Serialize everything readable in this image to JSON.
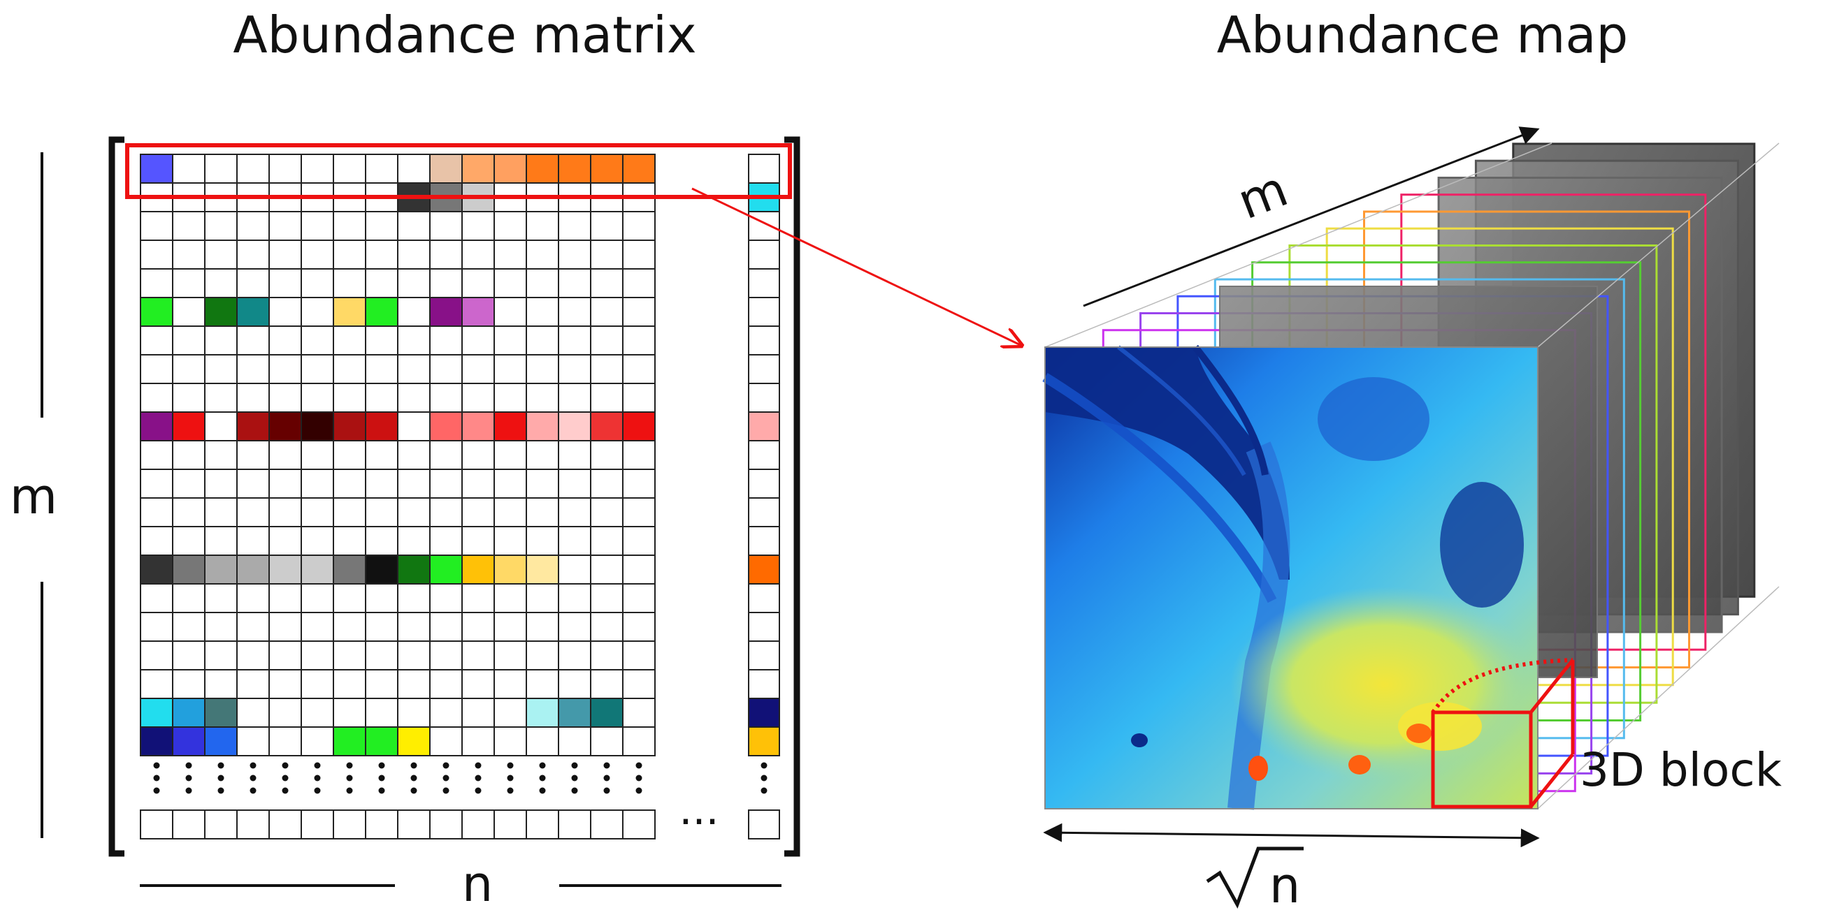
{
  "titles": {
    "matrix": "Abundance matrix",
    "map": "Abundance map"
  },
  "labels": {
    "m_left": "m",
    "n_bottom": "n",
    "m_depth": "m",
    "sqrt_n": "n",
    "block": "3D block",
    "ellipsis_h": "···"
  },
  "matrix": {
    "rows": 21,
    "cols": 16,
    "colored_cells": [
      {
        "r": 0,
        "c": 0,
        "color": "#5555ff"
      },
      {
        "r": 0,
        "c": 9,
        "color": "#e8c3a8"
      },
      {
        "r": 0,
        "c": 10,
        "color": "#ffa868"
      },
      {
        "r": 0,
        "c": 11,
        "color": "#ffa060"
      },
      {
        "r": 0,
        "c": 12,
        "color": "#ff7a18"
      },
      {
        "r": 0,
        "c": 13,
        "color": "#ff7a18"
      },
      {
        "r": 0,
        "c": 14,
        "color": "#ff7a18"
      },
      {
        "r": 0,
        "c": 15,
        "color": "#ff7a18"
      },
      {
        "r": 1,
        "c": 8,
        "color": "#333333"
      },
      {
        "r": 1,
        "c": 9,
        "color": "#777777"
      },
      {
        "r": 1,
        "c": 10,
        "color": "#cccccc"
      },
      {
        "r": 5,
        "c": 0,
        "color": "#22ee22"
      },
      {
        "r": 5,
        "c": 2,
        "color": "#117711"
      },
      {
        "r": 5,
        "c": 3,
        "color": "#118888"
      },
      {
        "r": 5,
        "c": 6,
        "color": "#ffd966"
      },
      {
        "r": 5,
        "c": 7,
        "color": "#22ee22"
      },
      {
        "r": 5,
        "c": 9,
        "color": "#881188"
      },
      {
        "r": 5,
        "c": 10,
        "color": "#cc66cc"
      },
      {
        "r": 9,
        "c": 0,
        "color": "#881188"
      },
      {
        "r": 9,
        "c": 1,
        "color": "#ee1111"
      },
      {
        "r": 9,
        "c": 3,
        "color": "#aa1111"
      },
      {
        "r": 9,
        "c": 4,
        "color": "#660000"
      },
      {
        "r": 9,
        "c": 5,
        "color": "#330000"
      },
      {
        "r": 9,
        "c": 6,
        "color": "#aa1111"
      },
      {
        "r": 9,
        "c": 7,
        "color": "#cc1111"
      },
      {
        "r": 9,
        "c": 9,
        "color": "#ff6666"
      },
      {
        "r": 9,
        "c": 10,
        "color": "#ff8888"
      },
      {
        "r": 9,
        "c": 11,
        "color": "#ee1111"
      },
      {
        "r": 9,
        "c": 12,
        "color": "#ffaaaa"
      },
      {
        "r": 9,
        "c": 13,
        "color": "#ffcccc"
      },
      {
        "r": 9,
        "c": 14,
        "color": "#ee3333"
      },
      {
        "r": 9,
        "c": 15,
        "color": "#ee1111"
      },
      {
        "r": 14,
        "c": 0,
        "color": "#333333"
      },
      {
        "r": 14,
        "c": 1,
        "color": "#777777"
      },
      {
        "r": 14,
        "c": 2,
        "color": "#aaaaaa"
      },
      {
        "r": 14,
        "c": 3,
        "color": "#aaaaaa"
      },
      {
        "r": 14,
        "c": 4,
        "color": "#cccccc"
      },
      {
        "r": 14,
        "c": 5,
        "color": "#cccccc"
      },
      {
        "r": 14,
        "c": 6,
        "color": "#777777"
      },
      {
        "r": 14,
        "c": 7,
        "color": "#111111"
      },
      {
        "r": 14,
        "c": 8,
        "color": "#117711"
      },
      {
        "r": 14,
        "c": 9,
        "color": "#22ee22"
      },
      {
        "r": 14,
        "c": 10,
        "color": "#ffc107"
      },
      {
        "r": 14,
        "c": 11,
        "color": "#ffd966"
      },
      {
        "r": 14,
        "c": 12,
        "color": "#ffe8a0"
      },
      {
        "r": 19,
        "c": 0,
        "color": "#22ddee"
      },
      {
        "r": 19,
        "c": 1,
        "color": "#22a0dd"
      },
      {
        "r": 19,
        "c": 2,
        "color": "#447777"
      },
      {
        "r": 19,
        "c": 12,
        "color": "#aaf2f2"
      },
      {
        "r": 19,
        "c": 13,
        "color": "#4499aa"
      },
      {
        "r": 19,
        "c": 14,
        "color": "#117777"
      },
      {
        "r": 20,
        "c": 0,
        "color": "#111177"
      },
      {
        "r": 20,
        "c": 1,
        "color": "#3333dd"
      },
      {
        "r": 20,
        "c": 2,
        "color": "#2266ee"
      },
      {
        "r": 20,
        "c": 6,
        "color": "#22ee22"
      },
      {
        "r": 20,
        "c": 7,
        "color": "#22ee22"
      },
      {
        "r": 20,
        "c": 8,
        "color": "#ffee00"
      }
    ],
    "last_column": {
      "rows": 21,
      "colored_cells": [
        {
          "r": 1,
          "color": "#22ddee"
        },
        {
          "r": 9,
          "color": "#ffaaaa"
        },
        {
          "r": 14,
          "color": "#ff6a00"
        },
        {
          "r": 19,
          "color": "#111177"
        },
        {
          "r": 20,
          "color": "#ffc107"
        }
      ]
    }
  },
  "cube_layers": [
    {
      "name": "gray-layer",
      "color": "#333333"
    },
    {
      "name": "gray-layer",
      "color": "#555555"
    },
    {
      "name": "gray-layer",
      "color": "#666666"
    },
    {
      "name": "pink-layer",
      "color": "#ee2266"
    },
    {
      "name": "orange-layer",
      "color": "#ff9933"
    },
    {
      "name": "yellow-layer",
      "color": "#eedd44"
    },
    {
      "name": "lime-layer",
      "color": "#aadd33"
    },
    {
      "name": "green-layer",
      "color": "#55cc33"
    },
    {
      "name": "lightblue-layer",
      "color": "#55bbee"
    },
    {
      "name": "blue-layer",
      "color": "#4455ff"
    },
    {
      "name": "purple-layer",
      "color": "#9944ee"
    },
    {
      "name": "magenta-layer",
      "color": "#cc33ee"
    }
  ],
  "colors": {
    "highlight": "#ee1111",
    "grid_line": "#222222",
    "arrow": "#111111"
  }
}
